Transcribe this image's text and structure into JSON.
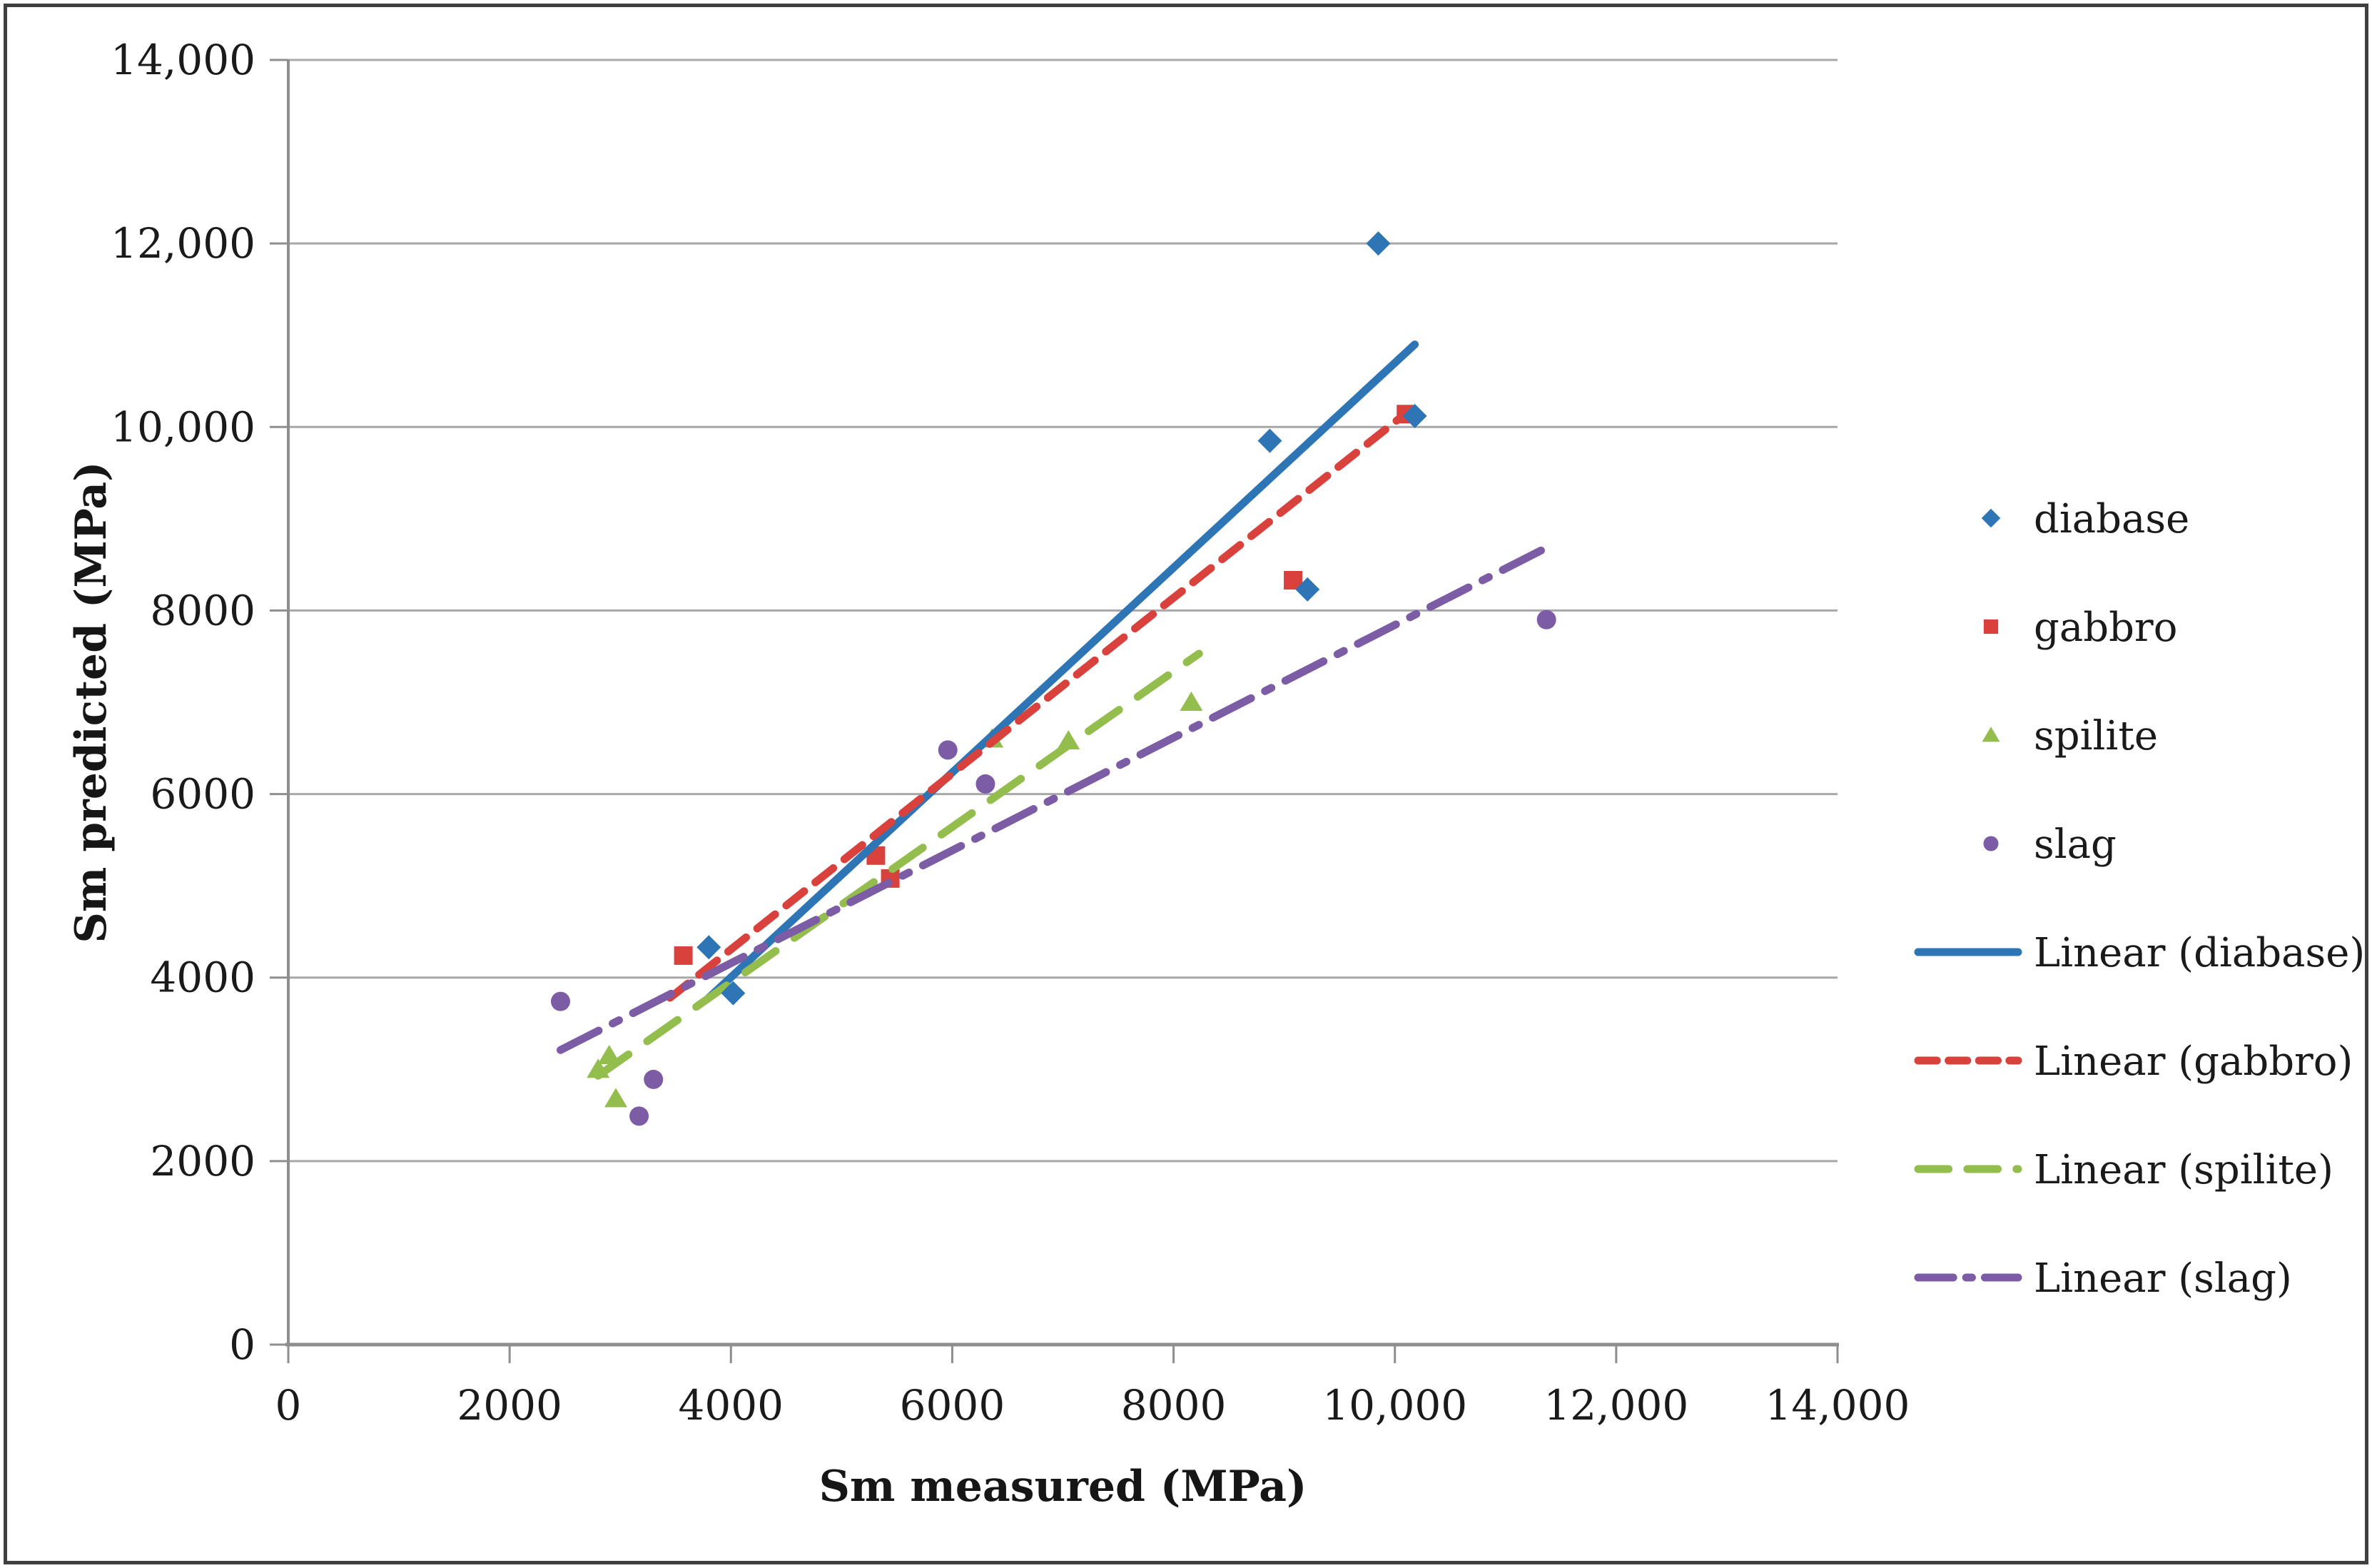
{
  "chart_data": {
    "type": "scatter",
    "title": "",
    "xlabel": "Sm measured (MPa)",
    "ylabel": "Sm predicted (MPa)",
    "xlim": [
      0,
      14000
    ],
    "ylim": [
      0,
      14000
    ],
    "grid": "horizontal-only",
    "legend_position": "right",
    "x_ticks": [
      {
        "value": 0,
        "label": "0"
      },
      {
        "value": 2000,
        "label": "2000"
      },
      {
        "value": 4000,
        "label": "4000"
      },
      {
        "value": 6000,
        "label": "6000"
      },
      {
        "value": 8000,
        "label": "8000"
      },
      {
        "value": 10000,
        "label": "10,000"
      },
      {
        "value": 12000,
        "label": "12,000"
      },
      {
        "value": 14000,
        "label": "14,000"
      }
    ],
    "y_ticks": [
      {
        "value": 0,
        "label": "0"
      },
      {
        "value": 2000,
        "label": "2000"
      },
      {
        "value": 4000,
        "label": "4000"
      },
      {
        "value": 6000,
        "label": "6000"
      },
      {
        "value": 8000,
        "label": "8000"
      },
      {
        "value": 10000,
        "label": "10,000"
      },
      {
        "value": 12000,
        "label": "12,000"
      },
      {
        "value": 14000,
        "label": "14,000"
      }
    ],
    "series": [
      {
        "name": "diabase",
        "marker": "diamond",
        "color": "#2e75b6",
        "points": [
          [
            3800,
            4330
          ],
          [
            4020,
            3830
          ],
          [
            8870,
            9850
          ],
          [
            9210,
            8230
          ],
          [
            9850,
            12000
          ],
          [
            10180,
            10120
          ]
        ]
      },
      {
        "name": "gabbro",
        "marker": "square",
        "color": "#d8413c",
        "points": [
          [
            3570,
            4240
          ],
          [
            5310,
            5330
          ],
          [
            5440,
            5080
          ],
          [
            9080,
            8330
          ],
          [
            10100,
            10140
          ]
        ]
      },
      {
        "name": "spilite",
        "marker": "triangle",
        "color": "#93bd4d",
        "points": [
          [
            2800,
            3000
          ],
          [
            2900,
            3150
          ],
          [
            2960,
            2680
          ],
          [
            6360,
            6600
          ],
          [
            7050,
            6580
          ],
          [
            8160,
            7000
          ]
        ]
      },
      {
        "name": "slag",
        "marker": "circle",
        "color": "#7b5ca5",
        "points": [
          [
            2460,
            3740
          ],
          [
            3170,
            2490
          ],
          [
            3300,
            2890
          ],
          [
            5960,
            6480
          ],
          [
            6300,
            6110
          ],
          [
            11370,
            7900
          ]
        ]
      }
    ],
    "trendlines": [
      {
        "series": "diabase",
        "label": "Linear (diabase)",
        "x1": 3800,
        "y1": 3780,
        "x2": 10180,
        "y2": 10900,
        "dash": []
      },
      {
        "series": "gabbro",
        "label": "Linear (gabbro)",
        "x1": 3450,
        "y1": 3780,
        "x2": 10100,
        "y2": 10150,
        "dash": [
          32,
          20
        ]
      },
      {
        "series": "spilite",
        "label": "Linear (spilite)",
        "x1": 2800,
        "y1": 2930,
        "x2": 8230,
        "y2": 7530,
        "dash": [
          52,
          32
        ]
      },
      {
        "series": "slag",
        "label": "Linear (slag)",
        "x1": 2460,
        "y1": 3210,
        "x2": 11330,
        "y2": 8660,
        "dash": [
          60,
          22,
          10,
          22
        ]
      }
    ],
    "legend": {
      "items": [
        {
          "type": "marker",
          "series": "diabase",
          "label": "diabase"
        },
        {
          "type": "marker",
          "series": "gabbro",
          "label": "gabbro"
        },
        {
          "type": "marker",
          "series": "spilite",
          "label": "spilite"
        },
        {
          "type": "marker",
          "series": "slag",
          "label": "slag"
        },
        {
          "type": "line",
          "series": "diabase",
          "label": "Linear (diabase)"
        },
        {
          "type": "line",
          "series": "gabbro",
          "label": "Linear (gabbro)"
        },
        {
          "type": "line",
          "series": "spilite",
          "label": "Linear (spilite)"
        },
        {
          "type": "line",
          "series": "slag",
          "label": "Linear (slag)"
        }
      ]
    },
    "style": {
      "grid_color": "#a8a8a8",
      "axis_color": "#8e8e8e",
      "text_color": "#1a1a1a",
      "background": "#ffffff",
      "border_color": "#3f3f3f"
    }
  }
}
